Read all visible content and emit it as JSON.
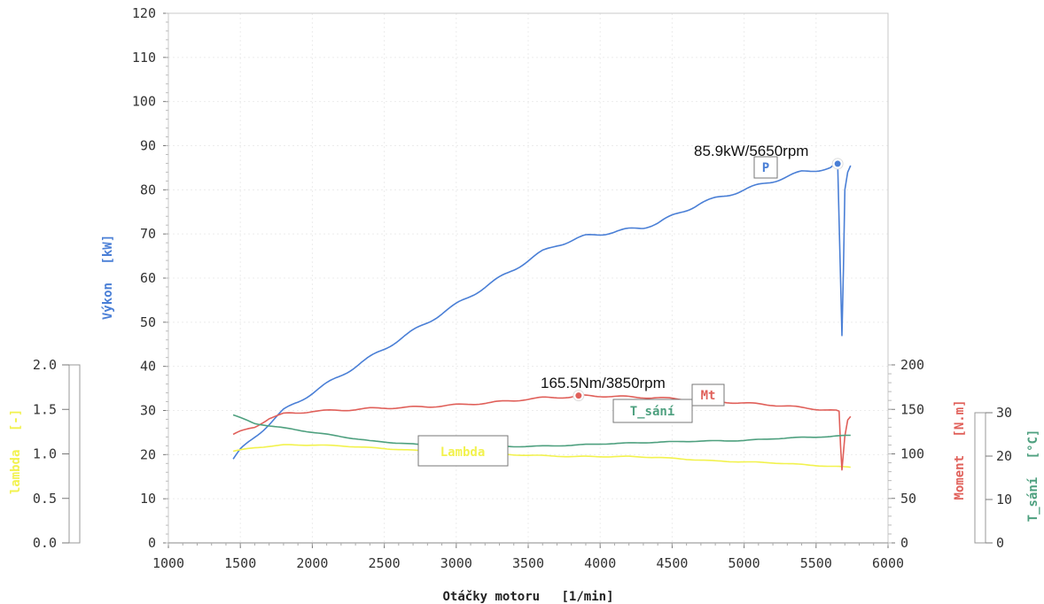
{
  "chart_data": {
    "type": "line",
    "x_axis": {
      "title_main": "Otáčky motoru",
      "title_unit": "[1/min]",
      "range": [
        1000,
        6000
      ],
      "ticks": [
        1000,
        1500,
        2000,
        2500,
        3000,
        3500,
        4000,
        4500,
        5000,
        5500,
        6000
      ]
    },
    "y_axes": {
      "power": {
        "title_main": "Výkon",
        "title_unit": "[kW]",
        "color": "#4a7fd6",
        "range": [
          0,
          120
        ],
        "ticks": [
          0,
          10,
          20,
          30,
          40,
          50,
          60,
          70,
          80,
          90,
          100,
          110,
          120
        ]
      },
      "lambda": {
        "title_main": "lambda",
        "title_unit": "[-]",
        "color": "#f2f24e",
        "range": [
          0.0,
          2.0
        ],
        "ticks": [
          "0.0",
          "0.5",
          "1.0",
          "1.5",
          "2.0"
        ]
      },
      "torque": {
        "title_main": "Moment",
        "title_unit": "[N.m]",
        "color": "#e0605a",
        "range": [
          0,
          200
        ],
        "ticks": [
          0,
          50,
          100,
          150,
          200
        ]
      },
      "intake_temp": {
        "title_main": "T_sání",
        "title_unit": "[°C]",
        "color": "#4ea07f",
        "range": [
          0,
          30
        ],
        "ticks": [
          0,
          10,
          20,
          30
        ]
      }
    },
    "series": [
      {
        "name": "P",
        "axis": "power",
        "color": "#4a7fd6",
        "points": [
          [
            1450,
            19
          ],
          [
            1500,
            21
          ],
          [
            1600,
            24
          ],
          [
            1700,
            27
          ],
          [
            1800,
            30
          ],
          [
            1900,
            32
          ],
          [
            2000,
            34
          ],
          [
            2100,
            36
          ],
          [
            2200,
            38
          ],
          [
            2300,
            40
          ],
          [
            2400,
            42
          ],
          [
            2500,
            44
          ],
          [
            2600,
            46
          ],
          [
            2700,
            48
          ],
          [
            2800,
            50
          ],
          [
            2900,
            52
          ],
          [
            3000,
            54
          ],
          [
            3100,
            56
          ],
          [
            3200,
            58
          ],
          [
            3300,
            60
          ],
          [
            3400,
            62
          ],
          [
            3500,
            64
          ],
          [
            3600,
            66
          ],
          [
            3700,
            67.5
          ],
          [
            3800,
            68.5
          ],
          [
            3900,
            69.5
          ],
          [
            4000,
            70
          ],
          [
            4100,
            70.5
          ],
          [
            4200,
            71
          ],
          [
            4300,
            71.5
          ],
          [
            4400,
            72.5
          ],
          [
            4500,
            74
          ],
          [
            4600,
            75.5
          ],
          [
            4700,
            77
          ],
          [
            4800,
            78
          ],
          [
            4900,
            79
          ],
          [
            5000,
            80
          ],
          [
            5100,
            81
          ],
          [
            5200,
            82
          ],
          [
            5300,
            83
          ],
          [
            5400,
            84
          ],
          [
            5500,
            84.5
          ],
          [
            5600,
            85
          ],
          [
            5650,
            85.9
          ],
          [
            5670,
            60
          ],
          [
            5680,
            47
          ],
          [
            5690,
            62
          ],
          [
            5700,
            80
          ],
          [
            5720,
            84
          ],
          [
            5740,
            85.5
          ]
        ]
      },
      {
        "name": "Lambda",
        "axis": "lambda",
        "color": "#f2f24e",
        "points": [
          [
            1450,
            1.03
          ],
          [
            1600,
            1.07
          ],
          [
            1800,
            1.1
          ],
          [
            2000,
            1.1
          ],
          [
            2200,
            1.09
          ],
          [
            2400,
            1.07
          ],
          [
            2600,
            1.05
          ],
          [
            2800,
            1.03
          ],
          [
            3000,
            1.01
          ],
          [
            3200,
            1.0
          ],
          [
            3400,
            0.99
          ],
          [
            3600,
            0.98
          ],
          [
            3800,
            0.97
          ],
          [
            4000,
            0.97
          ],
          [
            4200,
            0.97
          ],
          [
            4400,
            0.96
          ],
          [
            4600,
            0.94
          ],
          [
            4800,
            0.92
          ],
          [
            5000,
            0.91
          ],
          [
            5200,
            0.9
          ],
          [
            5400,
            0.88
          ],
          [
            5600,
            0.86
          ],
          [
            5740,
            0.85
          ]
        ]
      },
      {
        "name": "Mt",
        "axis": "torque",
        "color": "#e0605a",
        "points": [
          [
            1450,
            122
          ],
          [
            1500,
            125
          ],
          [
            1600,
            130
          ],
          [
            1700,
            140
          ],
          [
            1800,
            145
          ],
          [
            1900,
            146
          ],
          [
            2000,
            148
          ],
          [
            2200,
            149
          ],
          [
            2400,
            151
          ],
          [
            2600,
            152
          ],
          [
            2800,
            153
          ],
          [
            3000,
            155
          ],
          [
            3200,
            157
          ],
          [
            3400,
            160
          ],
          [
            3600,
            163
          ],
          [
            3800,
            164
          ],
          [
            3850,
            165.5
          ],
          [
            4000,
            165
          ],
          [
            4200,
            164
          ],
          [
            4400,
            163
          ],
          [
            4600,
            161
          ],
          [
            4800,
            159
          ],
          [
            5000,
            157
          ],
          [
            5200,
            155
          ],
          [
            5400,
            152
          ],
          [
            5600,
            149
          ],
          [
            5660,
            148
          ],
          [
            5670,
            110
          ],
          [
            5680,
            82
          ],
          [
            5700,
            120
          ],
          [
            5720,
            138
          ],
          [
            5740,
            142
          ]
        ]
      },
      {
        "name": "T_sání",
        "axis": "intake_temp",
        "color": "#4ea07f",
        "points": [
          [
            1450,
            29.5
          ],
          [
            1600,
            27.5
          ],
          [
            1800,
            26.5
          ],
          [
            2000,
            25.5
          ],
          [
            2200,
            24.5
          ],
          [
            2400,
            23.5
          ],
          [
            2600,
            23
          ],
          [
            2800,
            22.5
          ],
          [
            3000,
            22.2
          ],
          [
            3200,
            22.2
          ],
          [
            3400,
            22.2
          ],
          [
            3600,
            22.3
          ],
          [
            3800,
            22.5
          ],
          [
            4000,
            22.8
          ],
          [
            4200,
            23
          ],
          [
            4400,
            23.2
          ],
          [
            4600,
            23.4
          ],
          [
            4800,
            23.5
          ],
          [
            5000,
            23.6
          ],
          [
            5200,
            24
          ],
          [
            5400,
            24.3
          ],
          [
            5600,
            24.5
          ],
          [
            5740,
            24.8
          ]
        ]
      }
    ],
    "annotations": {
      "peak_power": {
        "text": "85.9kW/5650rpm",
        "series": "P",
        "x": 5650,
        "y": 85.9
      },
      "peak_torque": {
        "text": "165.5Nm/3850rpm",
        "series": "Mt",
        "x": 3850,
        "y": 165.5
      }
    },
    "series_labels": [
      {
        "text": "P",
        "series": "P",
        "color": "#4a7fd6"
      },
      {
        "text": "Mt",
        "series": "Mt",
        "color": "#e0605a"
      },
      {
        "text": "T_sání",
        "series": "T_sání",
        "color": "#4ea07f"
      },
      {
        "text": "Lambda",
        "series": "Lambda",
        "color": "#f2f24e"
      }
    ],
    "grid": true
  }
}
